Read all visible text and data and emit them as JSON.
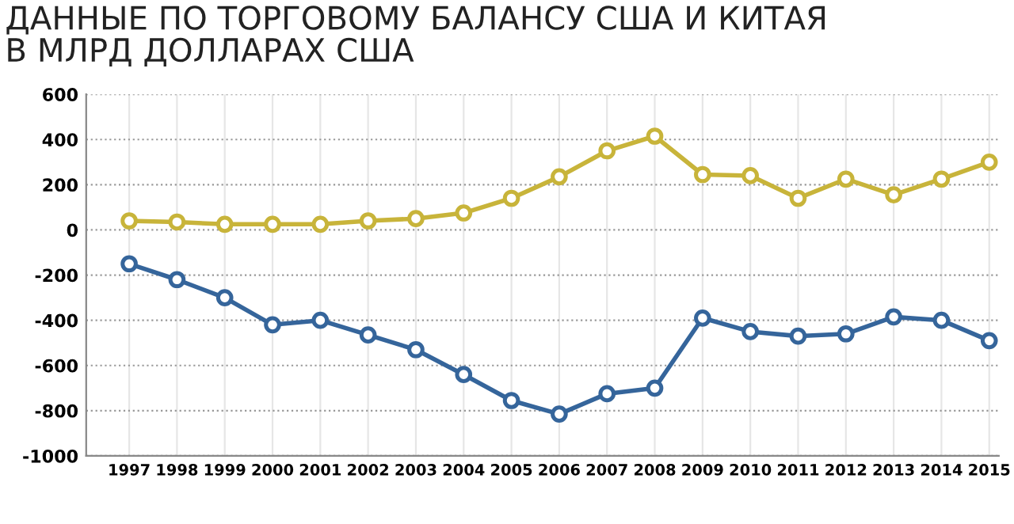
{
  "chart_data": {
    "type": "line",
    "title": "ДАННЫЕ ПО ТОРГОВОМУ БАЛАНСУ США И КИТАЯ\nВ МЛРД ДОЛЛАРАХ США",
    "categories": [
      "1997",
      "1998",
      "1999",
      "2000",
      "2001",
      "2002",
      "2003",
      "2004",
      "2005",
      "2006",
      "2007",
      "2008",
      "2009",
      "2010",
      "2011",
      "2012",
      "2013",
      "2014",
      "2015"
    ],
    "series": [
      {
        "color": "#c8b43a",
        "values": [
          40,
          35,
          25,
          25,
          25,
          40,
          50,
          75,
          140,
          235,
          350,
          415,
          245,
          240,
          140,
          225,
          155,
          225,
          300
        ]
      },
      {
        "color": "#35659b",
        "values": [
          -150,
          -220,
          -300,
          -420,
          -400,
          -465,
          -530,
          -640,
          -755,
          -815,
          -725,
          -700,
          -390,
          -450,
          -470,
          -460,
          -385,
          -400,
          -490
        ]
      }
    ],
    "ylim": [
      -1000,
      600
    ],
    "yticks": [
      -1000,
      -800,
      -600,
      -400,
      -200,
      0,
      200,
      400,
      600
    ],
    "grid": true,
    "marker": "circle",
    "line_style": "solid"
  }
}
